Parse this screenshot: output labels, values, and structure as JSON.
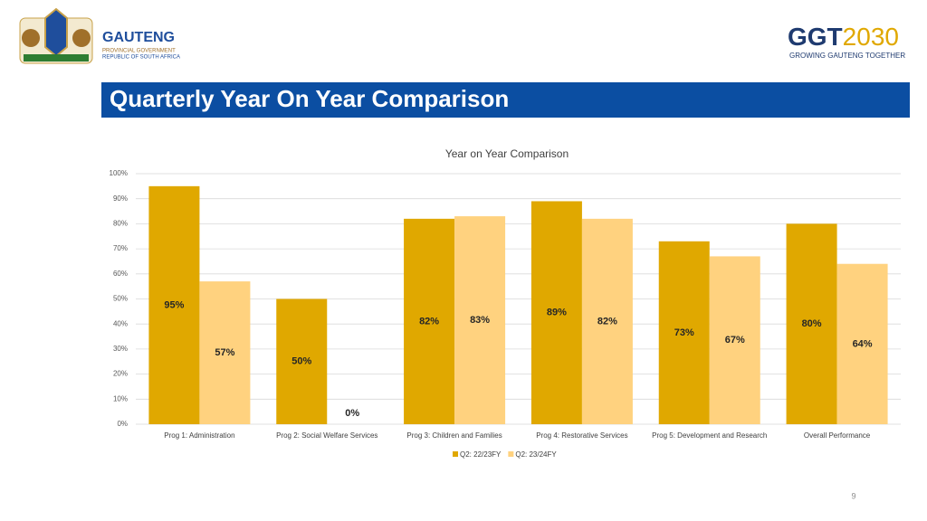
{
  "header": {
    "org_name": "GAUTENG",
    "org_line1": "PROVINCIAL GOVERNMENT",
    "org_line2": "REPUBLIC OF SOUTH AFRICA",
    "brand": "GGT",
    "brand_year": "2030",
    "brand_tagline": "GROWING GAUTENG TOGETHER",
    "slide_title": "Quarterly Year On Year Comparison"
  },
  "chart_data": {
    "type": "bar",
    "title": "Year on Year Comparison",
    "categories": [
      "Prog 1: Administration",
      "Prog 2: Social Welfare Services",
      "Prog 3: Children and Families",
      "Prog 4:  Restorative Services",
      "Prog 5: Development and Research",
      "Overall Performance"
    ],
    "series": [
      {
        "name": "Q2: 22/23FY",
        "color": "#e0a800",
        "values": [
          95,
          50,
          82,
          89,
          73,
          80
        ],
        "value_labels": [
          "95%",
          "50%",
          "82%",
          "89%",
          "73%",
          "80%"
        ]
      },
      {
        "name": "Q2: 23/24FY",
        "color": "#ffd27f",
        "values": [
          57,
          0,
          83,
          82,
          67,
          64
        ],
        "value_labels": [
          "57%",
          "0%",
          "83%",
          "82%",
          "67%",
          "64%"
        ]
      }
    ],
    "ylim": [
      0,
      100
    ],
    "yticks": [
      {
        "value": 0,
        "label": "0%"
      },
      {
        "value": 10,
        "label": "10%"
      },
      {
        "value": 20,
        "label": "20%"
      },
      {
        "value": 30,
        "label": "30%"
      },
      {
        "value": 40,
        "label": "40%"
      },
      {
        "value": 50,
        "label": "50%"
      },
      {
        "value": 60,
        "label": "60%"
      },
      {
        "value": 70,
        "label": "70%"
      },
      {
        "value": 80,
        "label": "80%"
      },
      {
        "value": 90,
        "label": "90%"
      },
      {
        "value": 100,
        "label": "100%"
      }
    ],
    "grid": true,
    "legend": "bottom"
  },
  "page_number": "9"
}
